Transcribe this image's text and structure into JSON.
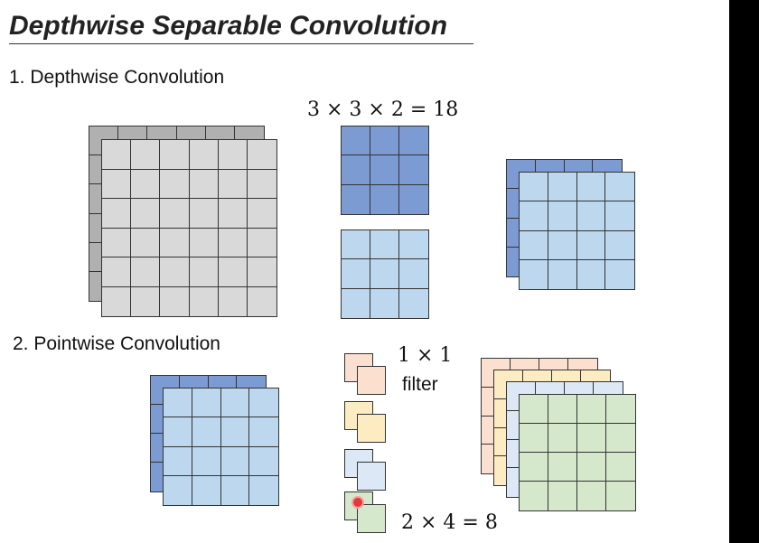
{
  "slide": {
    "title": "Depthwise Separable Convolution",
    "section1_label": "1. Depthwise Convolution",
    "section2_label": "2. Pointwise Convolution",
    "depthwise_params": "3 × 3 × 2 = 18",
    "filter_size": "1 × 1",
    "filter_word": "filter",
    "pointwise_params": "2 × 4 = 8"
  },
  "colors": {
    "input_back": "#b0b0b0",
    "input_front": "#d9d9d9",
    "kernel_dark": "#7b9bd2",
    "kernel_light": "#bdd7ee",
    "orange": "#fbe0cf",
    "yellow": "#fdecc1",
    "blue": "#dce8f5",
    "green": "#d6e8cc",
    "grid_line": "#333333"
  }
}
